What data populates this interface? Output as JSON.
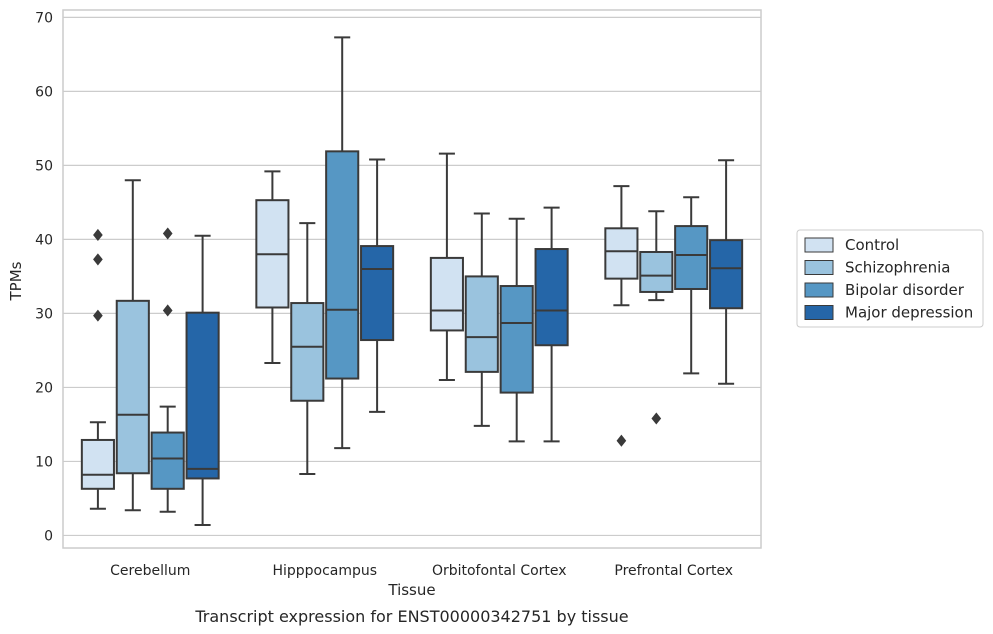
{
  "chart_data": {
    "type": "box",
    "title": "",
    "caption": "Transcript expression for ENST00000342751 by tissue",
    "xlabel": "Tissue",
    "ylabel": "TPMs",
    "ylim": [
      -1.7,
      71
    ],
    "yticks": [
      0,
      10,
      20,
      30,
      40,
      50,
      60,
      70
    ],
    "grid": "horizontal",
    "legend_position": "right",
    "categories": [
      "Cerebellum",
      "Hipppocampus",
      "Orbitofontal Cortex",
      "Prefrontal Cortex"
    ],
    "series": [
      {
        "name": "Control",
        "color": "#d1e2f2",
        "boxes": [
          {
            "whislo": 3.6,
            "q1": 6.3,
            "med": 8.2,
            "q3": 12.9,
            "whishi": 15.3,
            "fliers": [
              29.7,
              37.3,
              40.6
            ]
          },
          {
            "whislo": 23.3,
            "q1": 30.8,
            "med": 38.0,
            "q3": 45.3,
            "whishi": 49.2,
            "fliers": []
          },
          {
            "whislo": 21.0,
            "q1": 27.7,
            "med": 30.4,
            "q3": 37.5,
            "whishi": 51.6,
            "fliers": []
          },
          {
            "whislo": 31.1,
            "q1": 34.7,
            "med": 38.4,
            "q3": 41.5,
            "whishi": 47.2,
            "fliers": [
              12.8
            ]
          }
        ]
      },
      {
        "name": "Schizophrenia",
        "color": "#9ac3de",
        "boxes": [
          {
            "whislo": 3.4,
            "q1": 8.4,
            "med": 16.3,
            "q3": 31.7,
            "whishi": 48.0,
            "fliers": []
          },
          {
            "whislo": 8.3,
            "q1": 18.2,
            "med": 25.5,
            "q3": 31.4,
            "whishi": 42.2,
            "fliers": []
          },
          {
            "whislo": 14.8,
            "q1": 22.1,
            "med": 26.8,
            "q3": 35.0,
            "whishi": 43.5,
            "fliers": []
          },
          {
            "whislo": 31.8,
            "q1": 32.9,
            "med": 35.1,
            "q3": 38.3,
            "whishi": 43.8,
            "fliers": [
              15.8
            ]
          }
        ]
      },
      {
        "name": "Bipolar disorder",
        "color": "#5697c4",
        "boxes": [
          {
            "whislo": 3.2,
            "q1": 6.3,
            "med": 10.4,
            "q3": 13.9,
            "whishi": 17.4,
            "fliers": [
              30.4,
              40.8
            ]
          },
          {
            "whislo": 11.8,
            "q1": 21.2,
            "med": 30.5,
            "q3": 51.9,
            "whishi": 67.3,
            "fliers": []
          },
          {
            "whislo": 12.7,
            "q1": 19.3,
            "med": 28.7,
            "q3": 33.7,
            "whishi": 42.8,
            "fliers": []
          },
          {
            "whislo": 21.9,
            "q1": 33.3,
            "med": 37.9,
            "q3": 41.8,
            "whishi": 45.7,
            "fliers": []
          }
        ]
      },
      {
        "name": "Major depression",
        "color": "#2566a8",
        "boxes": [
          {
            "whislo": 1.4,
            "q1": 7.7,
            "med": 9.0,
            "q3": 30.1,
            "whishi": 40.5,
            "fliers": []
          },
          {
            "whislo": 16.7,
            "q1": 26.4,
            "med": 36.0,
            "q3": 39.1,
            "whishi": 50.8,
            "fliers": []
          },
          {
            "whislo": 12.7,
            "q1": 25.7,
            "med": 30.4,
            "q3": 38.7,
            "whishi": 44.3,
            "fliers": []
          },
          {
            "whislo": 20.5,
            "q1": 30.7,
            "med": 36.1,
            "q3": 39.9,
            "whishi": 50.7,
            "fliers": []
          }
        ]
      }
    ]
  }
}
